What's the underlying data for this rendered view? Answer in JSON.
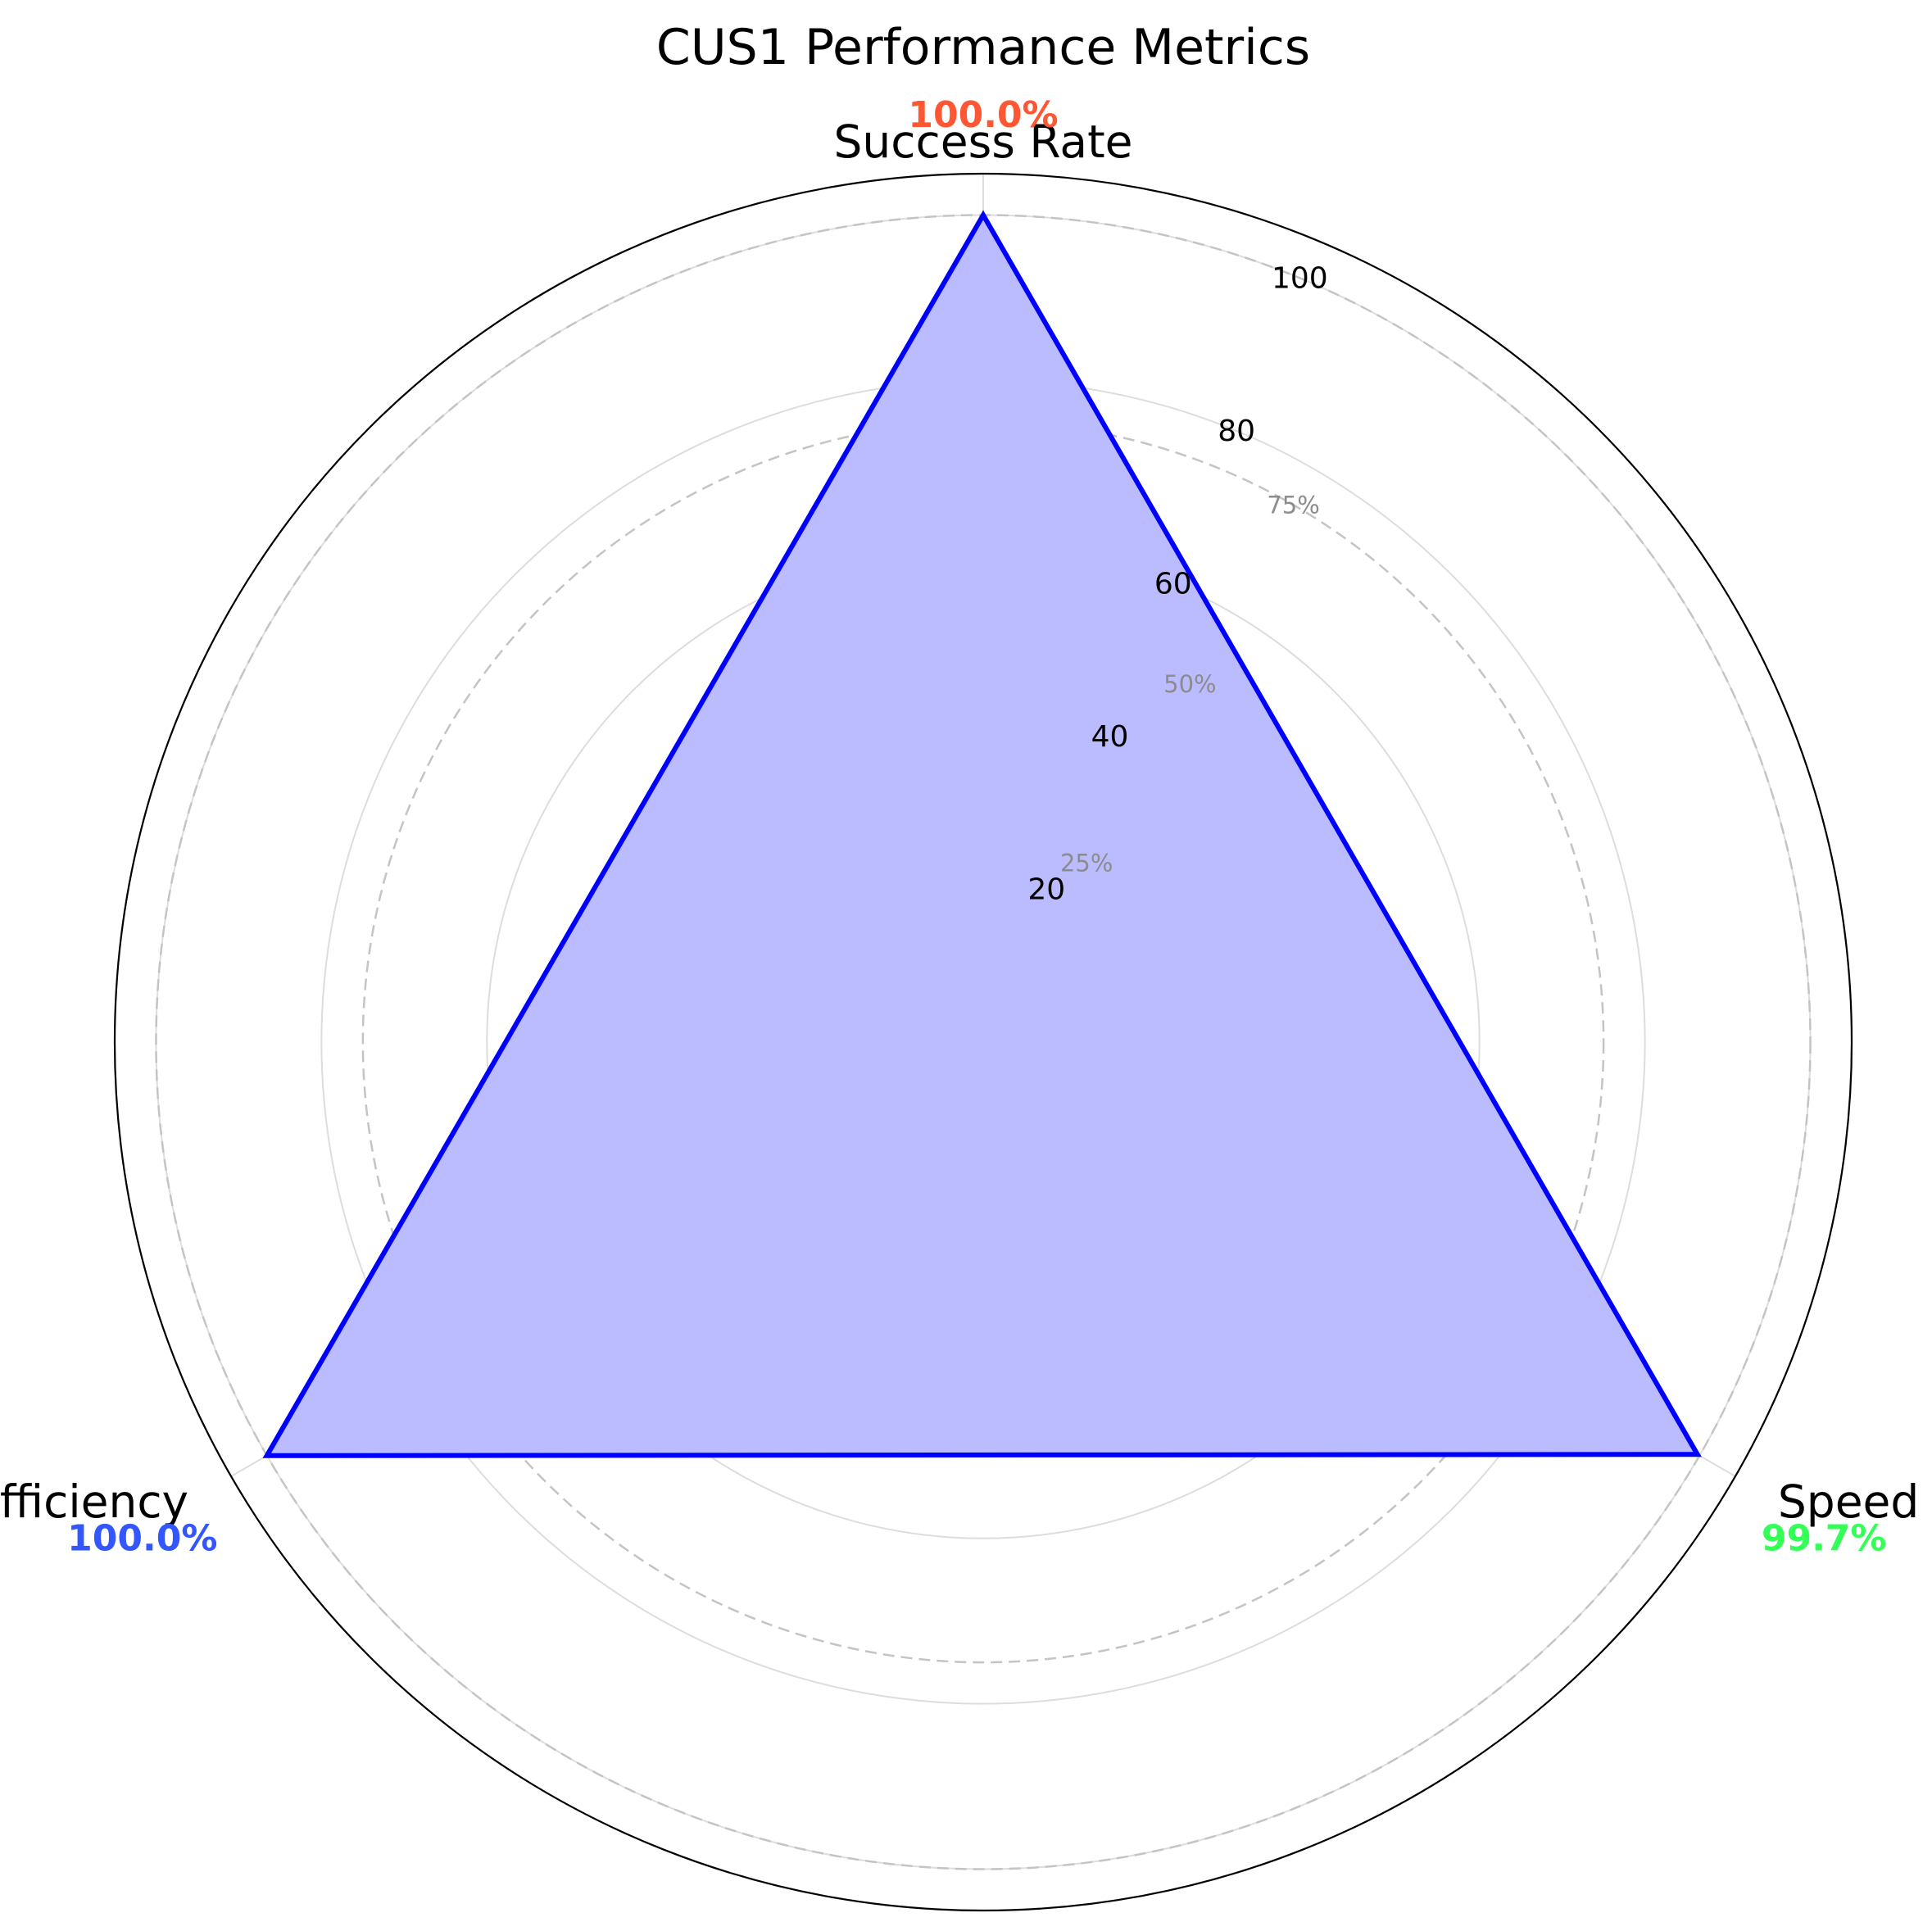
{
  "chart_data": {
    "type": "radar",
    "title": "CUS1 Performance Metrics",
    "categories": [
      "Success Rate",
      "Speed",
      "Efficiency"
    ],
    "values": [
      100.0,
      99.7,
      100.0
    ],
    "value_labels": [
      "100.0%",
      "99.7%",
      "100.0%"
    ],
    "value_label_colors": [
      "#ff5733",
      "#33ff57",
      "#3357ff"
    ],
    "series": [
      {
        "values": [
          100.0,
          99.7,
          100.0
        ],
        "line_color": "#0000ff",
        "fill_color": "#bbbbff"
      }
    ],
    "rlim": [
      0,
      105
    ],
    "rticks": [
      20,
      40,
      60,
      80,
      100
    ],
    "rtick_labels": [
      "20",
      "40",
      "60",
      "80",
      "100"
    ],
    "reference_levels": [
      25,
      50,
      75,
      100
    ],
    "reference_labels": [
      "25%",
      "50%",
      "75%"
    ],
    "grid": true
  }
}
